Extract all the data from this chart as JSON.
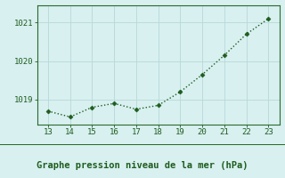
{
  "x": [
    13,
    14,
    15,
    16,
    17,
    18,
    19,
    20,
    21,
    22,
    23
  ],
  "y": [
    1018.7,
    1018.55,
    1018.8,
    1018.9,
    1018.75,
    1018.85,
    1019.2,
    1019.65,
    1020.15,
    1020.7,
    1021.1
  ],
  "line_color": "#1e5c1e",
  "marker": "D",
  "marker_size": 2.5,
  "background_color": "#d8f0f0",
  "grid_color": "#b8d8d8",
  "xlabel": "Graphe pression niveau de la mer (hPa)",
  "xlabel_color": "#1e5c1e",
  "tick_color": "#1e5c1e",
  "xlim": [
    12.5,
    23.5
  ],
  "ylim": [
    1018.35,
    1021.45
  ],
  "yticks": [
    1019,
    1020,
    1021
  ],
  "xticks": [
    13,
    14,
    15,
    16,
    17,
    18,
    19,
    20,
    21,
    22,
    23
  ],
  "spine_color": "#2a6a2a",
  "tick_fontsize": 6.5,
  "xlabel_fontsize": 7.5,
  "bottom_bar_color": "#2a6a2a"
}
